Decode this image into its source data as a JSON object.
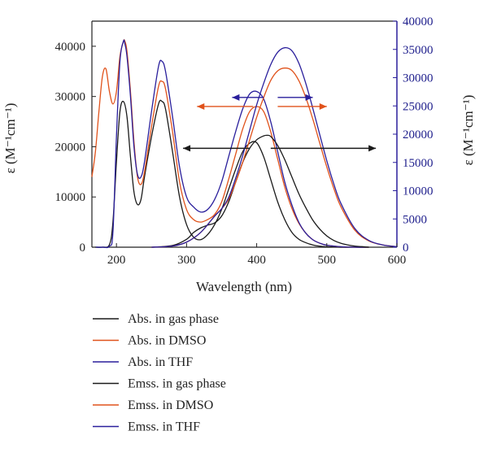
{
  "chart_data": {
    "type": "line",
    "xlabel": "Wavelength (nm)",
    "ylabel_left": "ε (M⁻¹cm⁻¹)",
    "ylabel_right": "ε (M⁻¹cm⁻¹)",
    "xlim": [
      165,
      600
    ],
    "ylim_left": [
      0,
      45000
    ],
    "ylim_right": [
      0,
      40000
    ],
    "x_ticks": [
      200,
      300,
      400,
      500,
      600
    ],
    "y_ticks_left": [
      0,
      10000,
      20000,
      30000,
      40000
    ],
    "y_ticks_right": [
      0,
      5000,
      10000,
      15000,
      20000,
      25000,
      30000,
      35000,
      40000
    ],
    "grid": false,
    "legend_position": "below",
    "colors": {
      "gas": "#1a1a1a",
      "dmso": "#e0521b",
      "thf": "#2a1f9c",
      "right_axis": "#2a1f9c"
    },
    "series": [
      {
        "name": "Abs. in gas phase",
        "color_key": "gas",
        "axis": "left",
        "x": [
          170,
          180,
          190,
          195,
          200,
          205,
          210,
          215,
          220,
          225,
          230,
          235,
          240,
          250,
          260,
          265,
          270,
          280,
          290,
          300,
          310,
          320,
          330,
          340,
          350,
          360,
          370,
          380,
          390,
          400,
          410,
          420,
          430,
          440,
          450,
          460,
          470,
          480,
          490,
          500,
          520,
          540,
          560
        ],
        "y": [
          0,
          0,
          500,
          5000,
          17000,
          27000,
          29000,
          26000,
          18000,
          11000,
          8500,
          9500,
          14000,
          22000,
          28500,
          29000,
          27500,
          19000,
          10000,
          4500,
          2000,
          1500,
          2500,
          4500,
          7500,
          11500,
          15500,
          19000,
          20700,
          20800,
          18000,
          13500,
          9000,
          5500,
          3000,
          1600,
          900,
          450,
          200,
          100,
          0,
          0,
          0
        ]
      },
      {
        "name": "Abs. in DMSO",
        "color_key": "dmso",
        "axis": "left",
        "x": [
          165,
          170,
          175,
          180,
          185,
          190,
          195,
          200,
          205,
          210,
          212,
          215,
          220,
          225,
          230,
          235,
          240,
          250,
          260,
          265,
          270,
          280,
          290,
          300,
          310,
          320,
          330,
          340,
          350,
          360,
          370,
          380,
          390,
          400,
          410,
          420,
          430,
          440,
          450,
          460,
          470,
          480,
          490,
          500,
          520,
          540,
          560
        ],
        "y": [
          14000,
          19000,
          27000,
          34000,
          35500,
          31000,
          28500,
          31000,
          38000,
          41000,
          41000,
          39000,
          31000,
          21000,
          14000,
          12500,
          15000,
          24000,
          32000,
          33000,
          31500,
          23000,
          13000,
          7500,
          5500,
          5000,
          5500,
          6500,
          9000,
          13500,
          18500,
          23500,
          27000,
          28000,
          27000,
          23000,
          17500,
          12000,
          7800,
          4800,
          2800,
          1500,
          800,
          400,
          100,
          0,
          0
        ]
      },
      {
        "name": "Abs. in THF",
        "color_key": "thf",
        "axis": "left",
        "x": [
          170,
          180,
          190,
          195,
          200,
          205,
          210,
          212,
          215,
          220,
          225,
          230,
          235,
          240,
          250,
          260,
          265,
          270,
          280,
          290,
          300,
          310,
          320,
          330,
          340,
          350,
          360,
          370,
          380,
          390,
          400,
          410,
          420,
          430,
          440,
          450,
          460,
          470,
          480,
          490,
          500,
          520,
          540,
          560
        ],
        "y": [
          0,
          0,
          200,
          3000,
          22000,
          37000,
          41000,
          40500,
          38000,
          30000,
          20000,
          14500,
          14000,
          17000,
          27000,
          36000,
          37000,
          35000,
          26000,
          16000,
          10000,
          8000,
          7000,
          7500,
          9500,
          13000,
          18000,
          23000,
          27500,
          30500,
          31000,
          29500,
          25000,
          19000,
          13000,
          8500,
          5000,
          2800,
          1500,
          800,
          400,
          100,
          0,
          0
        ]
      },
      {
        "name": "Emss. in gas phase",
        "color_key": "gas",
        "axis": "right",
        "x": [
          250,
          280,
          300,
          310,
          320,
          330,
          340,
          350,
          360,
          370,
          380,
          390,
          400,
          410,
          415,
          420,
          430,
          440,
          450,
          460,
          470,
          480,
          490,
          500,
          510,
          520,
          530,
          540,
          550,
          560
        ],
        "y": [
          0,
          300,
          1400,
          2600,
          3400,
          3900,
          4300,
          5500,
          8000,
          11500,
          15000,
          17500,
          19000,
          19700,
          19800,
          19600,
          18000,
          15500,
          12500,
          9500,
          7000,
          4800,
          3200,
          2000,
          1200,
          700,
          400,
          200,
          100,
          0
        ]
      },
      {
        "name": "Emss. in DMSO",
        "color_key": "dmso",
        "axis": "right",
        "x": [
          250,
          280,
          300,
          320,
          340,
          350,
          360,
          370,
          380,
          390,
          400,
          410,
          420,
          430,
          440,
          450,
          460,
          470,
          480,
          490,
          500,
          510,
          520,
          540,
          560,
          580,
          600
        ],
        "y": [
          0,
          200,
          900,
          2600,
          5500,
          6800,
          8500,
          11500,
          15000,
          19000,
          23000,
          26500,
          29500,
          31200,
          31700,
          31300,
          29500,
          26500,
          22700,
          18400,
          14200,
          10400,
          7200,
          3000,
          1100,
          400,
          100
        ]
      },
      {
        "name": "Emss. in THF",
        "color_key": "thf",
        "axis": "right",
        "x": [
          250,
          280,
          300,
          320,
          340,
          350,
          360,
          370,
          380,
          390,
          400,
          410,
          420,
          430,
          440,
          450,
          460,
          470,
          480,
          490,
          500,
          510,
          520,
          540,
          560,
          580,
          600
        ],
        "y": [
          0,
          200,
          900,
          2600,
          5500,
          6800,
          8800,
          12200,
          16200,
          20700,
          25200,
          29000,
          32300,
          34500,
          35300,
          34800,
          32600,
          29000,
          24600,
          19900,
          15300,
          11200,
          7800,
          3300,
          1200,
          400,
          100
        ]
      }
    ],
    "annotations": [
      {
        "type": "double-arrow",
        "color_key": "thf",
        "x_from": 365,
        "x_to": 410,
        "right_arrow_x_from": 430,
        "right_arrow_x_to": 480,
        "y_right": 26500
      },
      {
        "type": "double-arrow",
        "color_key": "dmso",
        "x_from": 315,
        "x_to": 395,
        "right_arrow_x_from": 430,
        "right_arrow_x_to": 500,
        "y_right": 24900
      },
      {
        "type": "double-arrow",
        "color_key": "gas",
        "x_from": 295,
        "x_to": 390,
        "right_arrow_x_from": 420,
        "right_arrow_x_to": 570,
        "y_right": 17500
      }
    ]
  }
}
